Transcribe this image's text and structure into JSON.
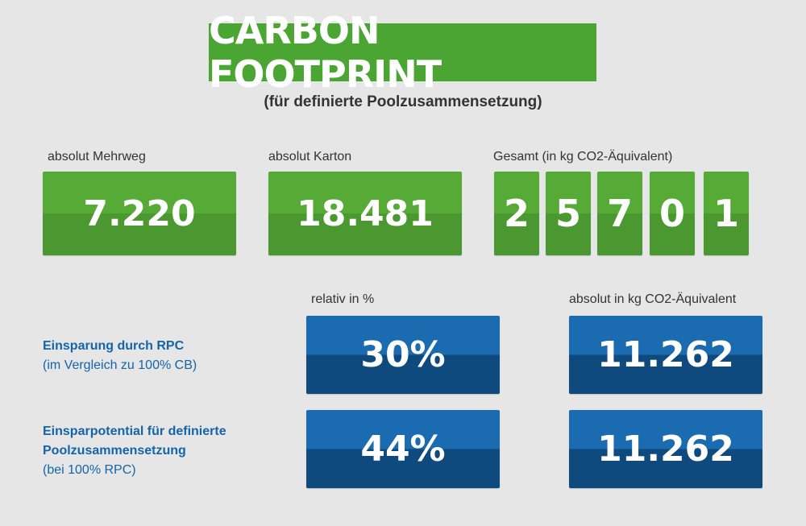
{
  "title": "CARBON FOOTPRINT",
  "subtitle": "(für definierte Poolzusammensetzung)",
  "colors": {
    "green": "#4aa532",
    "blue": "#1b6bb0",
    "background": "#e6e6e6"
  },
  "top": {
    "mehrweg": {
      "label": "absolut Mehrweg",
      "value": "7.220"
    },
    "karton": {
      "label": "absolut Karton",
      "value": "18.481"
    },
    "gesamt": {
      "label": "Gesamt (in kg CO2-Äquivalent)",
      "digits": [
        "2",
        "5",
        "7",
        "0",
        "1"
      ]
    }
  },
  "columns": {
    "relativ": "relativ in %",
    "absolut": "absolut in kg CO2-Äquivalent"
  },
  "rows": [
    {
      "title_lines": [
        "Einsparung durch RPC"
      ],
      "subtitle": "(im Vergleich zu 100% CB)",
      "relativ": "30%",
      "absolut": "11.262"
    },
    {
      "title_lines": [
        "Einsparpotential für definierte",
        "Poolzusammensetzung"
      ],
      "subtitle": "(bei 100% RPC)",
      "relativ": "44%",
      "absolut": "11.262"
    }
  ]
}
